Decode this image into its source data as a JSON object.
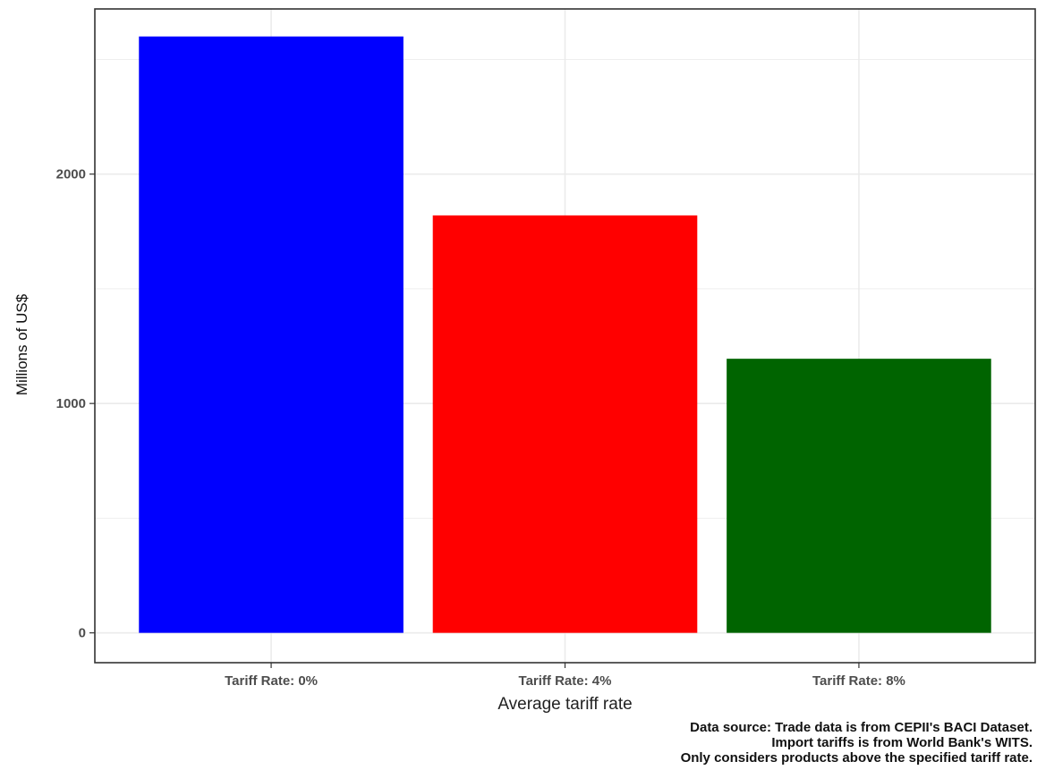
{
  "chart_data": {
    "type": "bar",
    "categories": [
      "Tariff Rate: 0%",
      "Tariff Rate: 4%",
      "Tariff Rate: 8%"
    ],
    "values": [
      2600,
      1820,
      1195
    ],
    "colors": [
      "#0000FF",
      "#FF0000",
      "#006400"
    ],
    "title": "",
    "xlabel": "Average tariff rate",
    "ylabel": "Millions of US$",
    "ylim": [
      -130,
      2720
    ],
    "yticks": [
      0,
      1000,
      2000
    ],
    "ytick_labels": [
      "0",
      "1000",
      "2000"
    ],
    "grid": true,
    "legend": "none",
    "caption": [
      "Data source: Trade data is from CEPII's BACI Dataset.",
      "Import tariffs is from World Bank's WITS.",
      "Only considers products above the specified tariff rate."
    ]
  }
}
